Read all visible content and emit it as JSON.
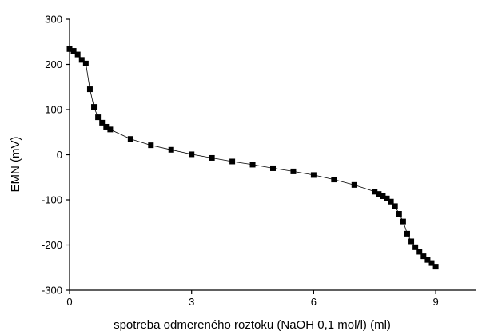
{
  "chart_data": {
    "type": "line",
    "title": "",
    "xlabel": "spotreba odmereného roztoku (NaOH 0,1 mol/l) (ml)",
    "ylabel": "EMN (mV)",
    "xlim": [
      0,
      10
    ],
    "ylim": [
      -300,
      300
    ],
    "xticks": [
      0,
      3,
      6,
      9
    ],
    "yticks": [
      -300,
      -200,
      -100,
      0,
      100,
      200,
      300
    ],
    "xtick_labels": [
      "0",
      "3",
      "6",
      "9"
    ],
    "ytick_labels": [
      "-300",
      "-200",
      "-100",
      "0",
      "100",
      "200",
      "300"
    ],
    "grid": false,
    "legend": "none",
    "marker": "square",
    "line_color": "#000000",
    "marker_color": "#000000",
    "series": [
      {
        "x": [
          0,
          0.1,
          0.2,
          0.3,
          0.4,
          0.5,
          0.6,
          0.7,
          0.8,
          0.9,
          1.0,
          1.5,
          2.0,
          2.5,
          3.0,
          3.5,
          4.0,
          4.5,
          5.0,
          5.5,
          6.0,
          6.5,
          7.0,
          7.5,
          7.6,
          7.7,
          7.8,
          7.9,
          8.0,
          8.1,
          8.2,
          8.3,
          8.4,
          8.5,
          8.6,
          8.7,
          8.8,
          8.9,
          9.0
        ],
        "y": [
          234,
          230,
          222,
          210,
          202,
          145,
          106,
          83,
          71,
          62,
          56,
          35,
          21,
          11,
          1,
          -7,
          -15,
          -22,
          -30,
          -37,
          -45,
          -55,
          -67,
          -82,
          -87,
          -92,
          -97,
          -104,
          -114,
          -131,
          -148,
          -175,
          -192,
          -205,
          -215,
          -225,
          -233,
          -240,
          -248
        ]
      }
    ]
  }
}
